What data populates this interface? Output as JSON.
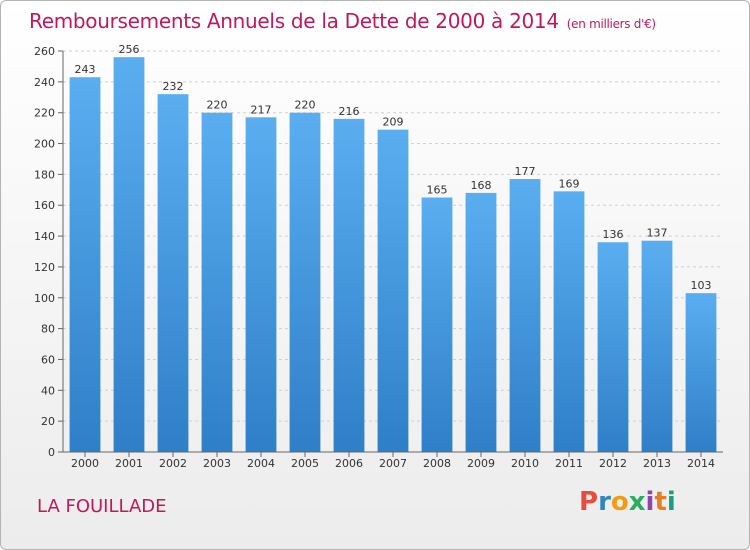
{
  "title": "Remboursements Annuels de la Dette de 2000 à 2014",
  "unit": "(en milliers d'€)",
  "commune": "LA FOUILLADE",
  "logo": {
    "letters": [
      "P",
      "r",
      "o",
      "x",
      "i",
      "t",
      "i"
    ],
    "colors": [
      "#e74c3c",
      "#2e86c1",
      "#f39c12",
      "#27ae60",
      "#8e44ad",
      "#e67e22",
      "#16a085"
    ]
  },
  "chart_data": {
    "type": "bar",
    "categories": [
      "2000",
      "2001",
      "2002",
      "2003",
      "2004",
      "2005",
      "2006",
      "2007",
      "2008",
      "2009",
      "2010",
      "2011",
      "2012",
      "2013",
      "2014"
    ],
    "values": [
      243,
      256,
      232,
      220,
      217,
      220,
      216,
      209,
      165,
      168,
      177,
      169,
      136,
      137,
      103
    ],
    "data_labels": [
      "243",
      "256",
      "232",
      "220",
      "217",
      "220",
      "216",
      "209",
      "165",
      "168",
      "177",
      "169",
      "136",
      "137",
      "103"
    ],
    "title": "Remboursements Annuels de la Dette de 2000 à 2014",
    "xlabel": "",
    "ylabel": "",
    "ylim": [
      0,
      260
    ],
    "yticks": [
      0,
      20,
      40,
      60,
      80,
      100,
      120,
      140,
      160,
      180,
      200,
      220,
      240,
      260
    ],
    "grid": true,
    "bar_color": "#4f9fe0"
  }
}
